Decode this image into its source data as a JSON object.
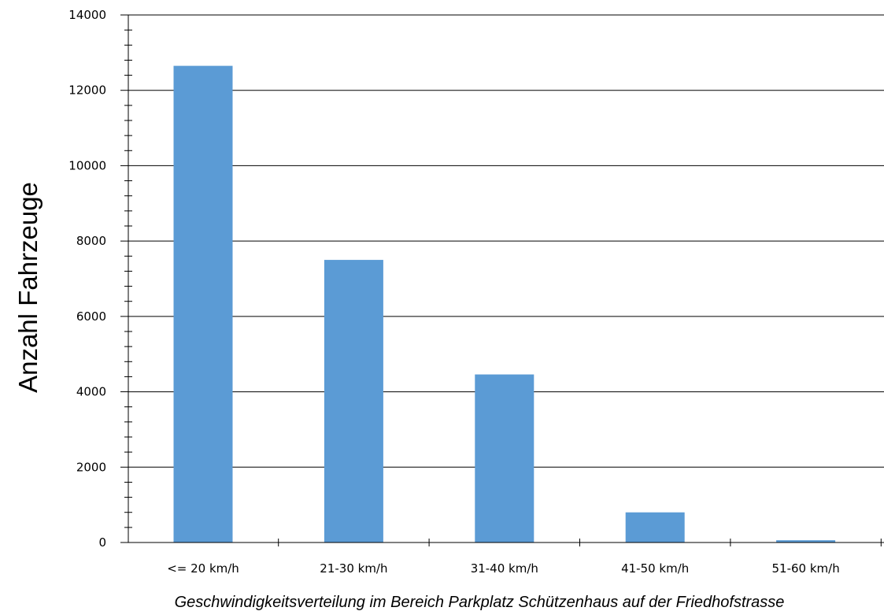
{
  "chart_data": {
    "type": "bar",
    "categories": [
      "<= 20 km/h",
      "21-30 km/h",
      "31-40 km/h",
      "41-50 km/h",
      "51-60 km/h"
    ],
    "values": [
      12650,
      7500,
      4460,
      800,
      60
    ],
    "ylabel": "Anzahl Fahrzeuge",
    "xlabel": "Geschwindigkeitsverteilung im Bereich Parkplatz Schützenhaus auf der Friedhofstrasse",
    "ylim": [
      0,
      14000
    ],
    "yticks": [
      0,
      2000,
      4000,
      6000,
      8000,
      10000,
      12000,
      14000
    ],
    "grid": true,
    "bar_color": "#5b9bd5"
  }
}
